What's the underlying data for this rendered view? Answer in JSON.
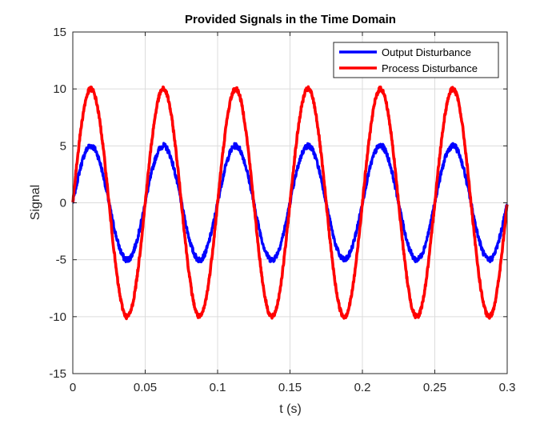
{
  "chart_data": {
    "type": "line",
    "title": "Provided Signals in the Time Domain",
    "xlabel": "t (s)",
    "ylabel": "Signal",
    "xlim": [
      0,
      0.3
    ],
    "ylim": [
      -15,
      15
    ],
    "x_ticks": [
      0,
      0.05,
      0.1,
      0.15,
      0.2,
      0.25,
      0.3
    ],
    "x_tick_labels": [
      "0",
      "0.05",
      "0.1",
      "0.15",
      "0.2",
      "0.25",
      "0.3"
    ],
    "y_ticks": [
      -15,
      -10,
      -5,
      0,
      5,
      10,
      15
    ],
    "y_tick_labels": [
      "-15",
      "-10",
      "-5",
      "0",
      "5",
      "10",
      "15"
    ],
    "grid": true,
    "legend_position": "top-right",
    "series": [
      {
        "name": "Output Disturbance",
        "color": "#0000ff",
        "amplitude": 5,
        "frequency_hz": 20,
        "noise": 0.25,
        "x": [
          0,
          0.0125,
          0.025,
          0.0375,
          0.05,
          0.0625,
          0.075,
          0.0875,
          0.1,
          0.1125,
          0.125,
          0.1375,
          0.15,
          0.1625,
          0.175,
          0.1875,
          0.2,
          0.2125,
          0.225,
          0.2375,
          0.25,
          0.2625,
          0.275,
          0.2875,
          0.3
        ],
        "values": [
          0,
          5,
          0,
          -5,
          0,
          5,
          0,
          -5,
          0,
          5,
          0,
          -5,
          0,
          5,
          0,
          -5,
          0,
          5,
          0,
          -5,
          0,
          5,
          0,
          -5,
          0
        ]
      },
      {
        "name": "Process Disturbance",
        "color": "#ff0000",
        "amplitude": 10,
        "frequency_hz": 20,
        "noise": 0.2,
        "x": [
          0,
          0.0125,
          0.025,
          0.0375,
          0.05,
          0.0625,
          0.075,
          0.0875,
          0.1,
          0.1125,
          0.125,
          0.1375,
          0.15,
          0.1625,
          0.175,
          0.1875,
          0.2,
          0.2125,
          0.225,
          0.2375,
          0.25,
          0.2625,
          0.275,
          0.2875,
          0.3
        ],
        "values": [
          0,
          10,
          0,
          -10,
          0,
          10,
          0,
          -10,
          0,
          10,
          0,
          -10,
          0,
          10,
          0,
          -10,
          0,
          10,
          0,
          -10,
          0,
          10,
          0,
          -10,
          0
        ]
      }
    ]
  }
}
